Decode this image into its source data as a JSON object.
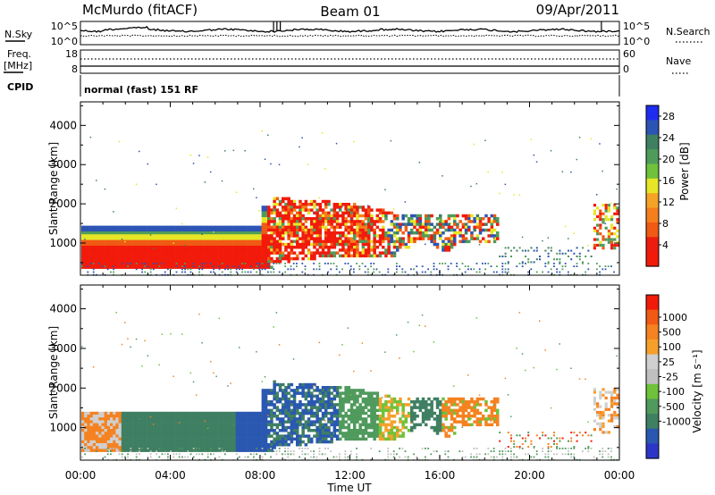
{
  "header": {
    "station": "McMurdo (fitACF)",
    "beam": "Beam 01",
    "date": "09/Apr/2011"
  },
  "labels": {
    "nsky": "N.Sky",
    "nsearch": "N.Search",
    "freq_line1": "Freq.",
    "freq_line2": "[MHz]",
    "nave": "Nave",
    "cpid": "CPID",
    "cpid_value": "normal (fast) 151 RF",
    "noise_top_left": "10^5",
    "noise_bottom_left": "10^0",
    "noise_top_right": "10^5",
    "noise_bottom_right": "10^0",
    "freq_top": "18",
    "freq_bottom": "8",
    "nave_top": "60",
    "nave_bottom": "0"
  },
  "colors": {
    "power_scale": [
      "#1e2cf0",
      "#2c54b4",
      "#3f7f62",
      "#4f9c5a",
      "#6fc23a",
      "#e6e626",
      "#f4a326",
      "#f57f1c",
      "#f05a14",
      "#ee1c10",
      "#f21a0a"
    ],
    "velocity_scale": [
      "#f21a0a",
      "#f05a14",
      "#f58220",
      "#f6a02c",
      "#cfcfcf",
      "#bfbfbf",
      "#6fc23a",
      "#4f9a5c",
      "#3f7f62",
      "#2a58b0",
      "#2b36c8"
    ]
  },
  "chart_data": [
    {
      "type": "heatmap",
      "name": "power",
      "ylabel": "Slant Range [km]",
      "xlabel": "",
      "x_ticks": [
        "00:00",
        "04:00",
        "08:00",
        "12:00",
        "16:00",
        "20:00",
        "00:00"
      ],
      "x_range_hours": [
        0,
        24
      ],
      "y_range": [
        180,
        4600
      ],
      "y_ticks": [
        1000,
        2000,
        3000,
        4000
      ],
      "colorbar_label": "Power [dB]",
      "colorbar_ticks": [
        4,
        8,
        12,
        16,
        20,
        24,
        28
      ],
      "colorbar_range": [
        0,
        30
      ]
    },
    {
      "type": "heatmap",
      "name": "velocity",
      "ylabel": "Slant Range [km]",
      "xlabel": "Time UT",
      "x_ticks": [
        "00:00",
        "04:00",
        "08:00",
        "12:00",
        "16:00",
        "20:00",
        "00:00"
      ],
      "x_range_hours": [
        0,
        24
      ],
      "y_range": [
        180,
        4600
      ],
      "y_ticks": [
        1000,
        2000,
        3000,
        4000
      ],
      "colorbar_label": "Velocity [m s⁻¹]",
      "colorbar_ticks": [
        "1000",
        "500",
        "100",
        "25",
        "-25",
        "-100",
        "-500",
        "-1000"
      ]
    }
  ]
}
